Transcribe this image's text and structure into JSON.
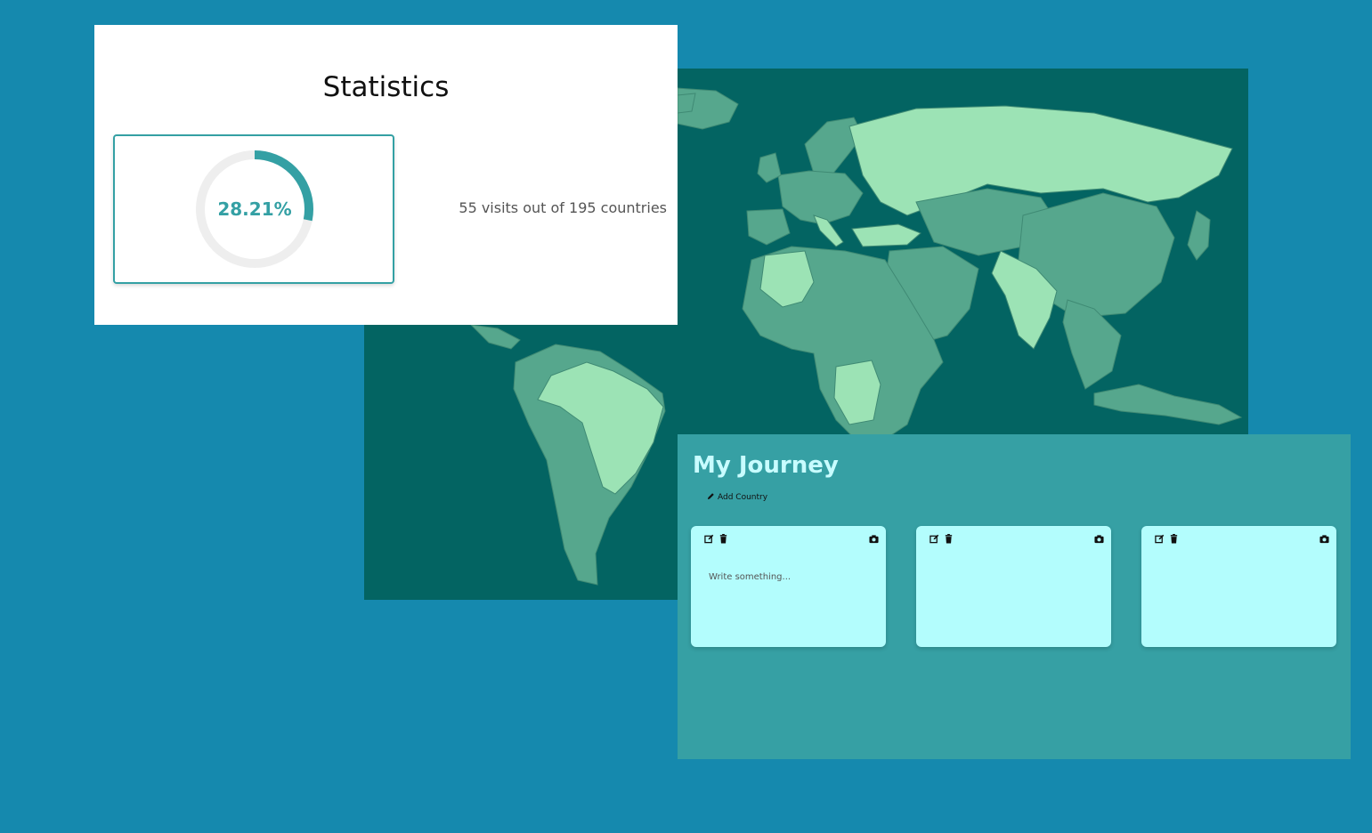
{
  "statistics": {
    "title": "Statistics",
    "progress_percent": 28.21,
    "progress_label": "28.21%",
    "visits_text": "55 visits out of 195 countries",
    "accent_color": "#34a0a4"
  },
  "map": {
    "ocean_color": "#036462",
    "land_color": "#56a78d",
    "visited_color": "#9ce3b5"
  },
  "journey": {
    "title": "My Journey",
    "add_country_label": "Add Country",
    "add_country_icon": "pencil-icon",
    "cards": [
      {
        "placeholder": "Write something...",
        "icons": [
          "edit-icon",
          "trash-icon",
          "camera-icon"
        ]
      },
      {
        "placeholder": "",
        "icons": [
          "edit-icon",
          "trash-icon",
          "camera-icon"
        ]
      },
      {
        "placeholder": "",
        "icons": [
          "edit-icon",
          "trash-icon",
          "camera-icon"
        ]
      }
    ]
  }
}
